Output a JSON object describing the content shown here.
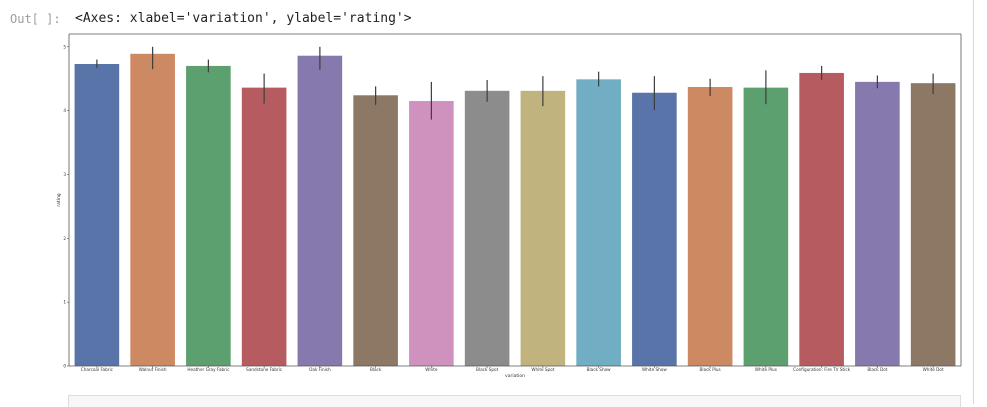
{
  "output": {
    "prompt": "Out[ ]:",
    "repr": "<Axes: xlabel='variation', ylabel='rating'>"
  },
  "chart_data": {
    "type": "bar",
    "title": "",
    "xlabel": "variation",
    "ylabel": "rating",
    "ylim": [
      0,
      5.2
    ],
    "yticks": [
      "0",
      "1",
      "2",
      "3",
      "4",
      "5"
    ],
    "grid": false,
    "categories": [
      "Charcoal Fabric",
      "Walnut Finish",
      "Heather Gray Fabric",
      "Sandstone Fabric",
      "Oak Finish",
      "Black",
      "White",
      "Black  Spot",
      "White  Spot",
      "Black  Show",
      "White  Show",
      "Black  Plus",
      "White  Plus",
      "Configuration: Fire TV Stick",
      "Black  Dot",
      "White  Dot"
    ],
    "values": [
      4.73,
      4.89,
      4.7,
      4.36,
      4.86,
      4.24,
      4.15,
      4.31,
      4.31,
      4.49,
      4.28,
      4.37,
      4.36,
      4.59,
      4.45,
      4.43
    ],
    "error_low": [
      4.67,
      4.65,
      4.6,
      4.11,
      4.64,
      4.09,
      3.86,
      4.14,
      4.07,
      4.38,
      4.01,
      4.23,
      4.1,
      4.48,
      4.35,
      4.26
    ],
    "error_high": [
      4.8,
      5.0,
      4.8,
      4.58,
      5.0,
      4.38,
      4.45,
      4.48,
      4.54,
      4.61,
      4.54,
      4.5,
      4.63,
      4.7,
      4.55,
      4.58
    ],
    "colors": [
      "#5874a8",
      "#cd8962",
      "#5da070",
      "#b65b5f",
      "#8579ad",
      "#8d7866",
      "#cf92bf",
      "#8c8c8c",
      "#c1b37d",
      "#72aec3",
      "#5874a8",
      "#cd8962",
      "#5da070",
      "#b65b5f",
      "#8579ad",
      "#8d7866"
    ]
  }
}
